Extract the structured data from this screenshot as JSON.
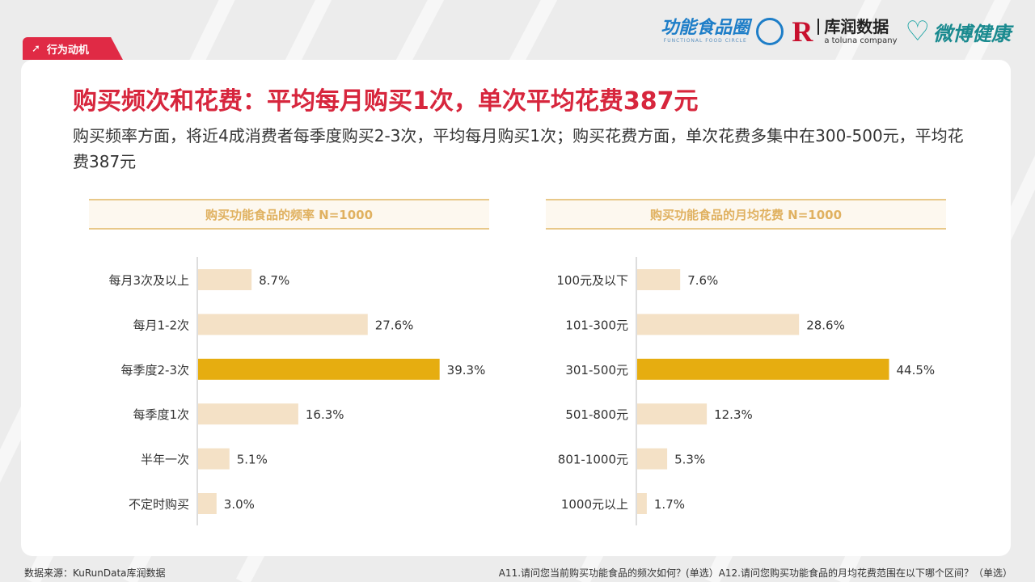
{
  "tag": {
    "label": "行为动机"
  },
  "logos": {
    "brand1": {
      "name": "功能食品圈",
      "sub": "FUNCTIONAL FOOD CIRCLE"
    },
    "brand2": {
      "mark": "R",
      "name": "库润数据",
      "sub": "a toluna company"
    },
    "brand3": {
      "name": "微博健康"
    }
  },
  "title": "购买频次和花费：平均每月购买1次，单次平均花费387元",
  "subtitle": "购买频率方面，将近4成消费者每季度购买2-3次，平均每月购买1次；购买花费方面，单次花费多集中在300-500元，平均花费387元",
  "colors": {
    "highlight": "#e6ad10",
    "normal": "#f4e1c6",
    "title_red": "#d7263d"
  },
  "chart_data": [
    {
      "type": "bar",
      "orientation": "horizontal",
      "title": "购买功能食品的频率  N=1000",
      "categories": [
        "每月3次及以上",
        "每月1-2次",
        "每季度2-3次",
        "每季度1次",
        "半年一次",
        "不定时购买"
      ],
      "values": [
        8.7,
        27.6,
        39.3,
        16.3,
        5.1,
        3.0
      ],
      "labels": [
        "8.7%",
        "27.6%",
        "39.3%",
        "16.3%",
        "5.1%",
        "3.0%"
      ],
      "highlight_index": 2
    },
    {
      "type": "bar",
      "orientation": "horizontal",
      "title": "购买功能食品的月均花费 N=1000",
      "categories": [
        "100元及以下",
        "101-300元",
        "301-500元",
        "501-800元",
        "801-1000元",
        "1000元以上"
      ],
      "values": [
        7.6,
        28.6,
        44.5,
        12.3,
        5.3,
        1.7
      ],
      "labels": [
        "7.6%",
        "28.6%",
        "44.5%",
        "12.3%",
        "5.3%",
        "1.7%"
      ],
      "highlight_index": 2
    }
  ],
  "footer": {
    "source": "数据来源：KuRunData库润数据",
    "question": "A11.请问您当前购买功能食品的频次如何？(单选）A12.请问您购买功能食品的月均花费范围在以下哪个区间？（单选）"
  }
}
